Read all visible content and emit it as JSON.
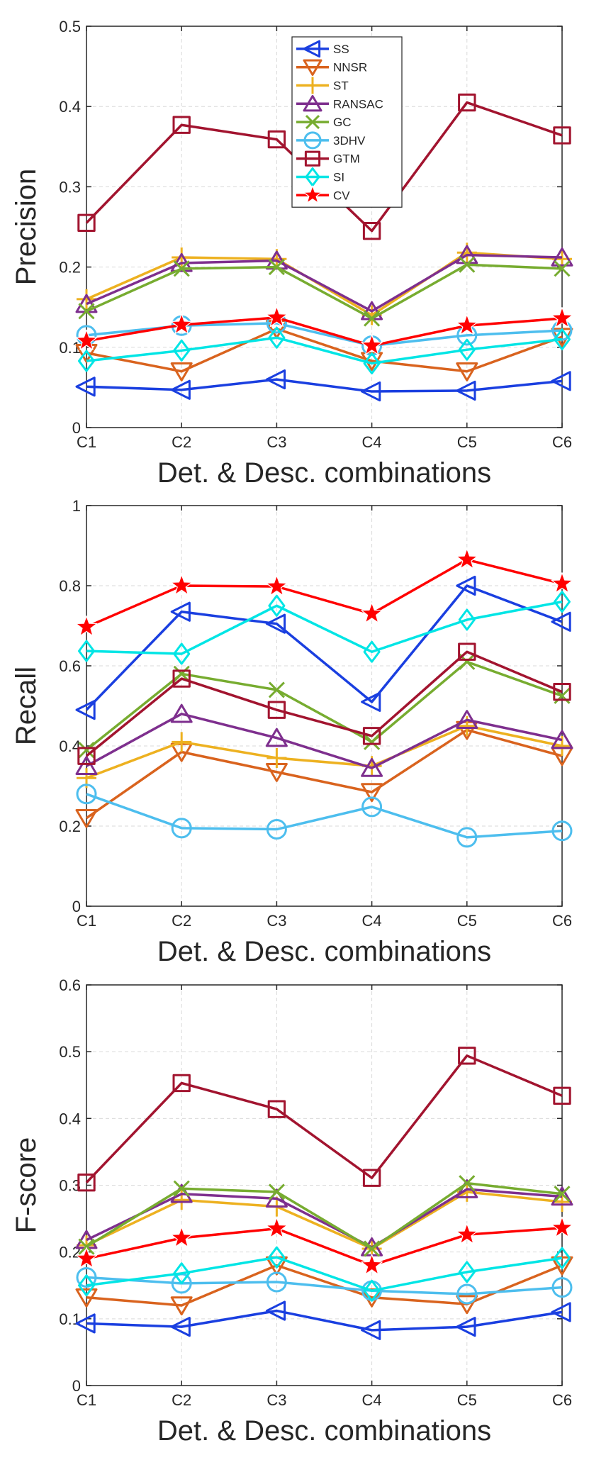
{
  "chart_data": [
    {
      "type": "line",
      "ylabel": "Precision",
      "xlabel": "Det. & Desc. combinations",
      "ylim": [
        0,
        0.5
      ],
      "yticks": [
        "0",
        "0.1",
        "0.2",
        "0.3",
        "0.4",
        "0.5"
      ],
      "categories": [
        "C1",
        "C2",
        "C3",
        "C4",
        "C5",
        "C6"
      ],
      "grid": true,
      "legend_position": "top-center",
      "series": [
        {
          "name": "SS",
          "values": [
            0.051,
            0.047,
            0.06,
            0.045,
            0.046,
            0.058
          ]
        },
        {
          "name": "NNSR",
          "values": [
            0.093,
            0.07,
            0.123,
            0.083,
            0.07,
            0.113
          ]
        },
        {
          "name": "ST",
          "values": [
            0.16,
            0.212,
            0.21,
            0.14,
            0.218,
            0.21
          ]
        },
        {
          "name": "RANSAC",
          "values": [
            0.154,
            0.205,
            0.208,
            0.145,
            0.215,
            0.212
          ]
        },
        {
          "name": "GC",
          "values": [
            0.145,
            0.198,
            0.2,
            0.136,
            0.203,
            0.198
          ]
        },
        {
          "name": "3DHV",
          "values": [
            0.115,
            0.127,
            0.13,
            0.102,
            0.115,
            0.121
          ]
        },
        {
          "name": "GTM",
          "values": [
            0.255,
            0.377,
            0.359,
            0.245,
            0.405,
            0.364
          ]
        },
        {
          "name": "SI",
          "values": [
            0.083,
            0.096,
            0.112,
            0.08,
            0.097,
            0.11
          ]
        },
        {
          "name": "CV",
          "values": [
            0.108,
            0.128,
            0.137,
            0.102,
            0.127,
            0.136
          ]
        }
      ]
    },
    {
      "type": "line",
      "ylabel": "Recall",
      "xlabel": "Det. & Desc. combinations",
      "ylim": [
        0,
        1
      ],
      "yticks": [
        "0",
        "0.2",
        "0.4",
        "0.6",
        "0.8",
        "1"
      ],
      "categories": [
        "C1",
        "C2",
        "C3",
        "C4",
        "C5",
        "C6"
      ],
      "grid": true,
      "series": [
        {
          "name": "SS",
          "values": [
            0.49,
            0.735,
            0.705,
            0.51,
            0.8,
            0.71
          ]
        },
        {
          "name": "NNSR",
          "values": [
            0.22,
            0.385,
            0.335,
            0.285,
            0.44,
            0.375
          ]
        },
        {
          "name": "ST",
          "values": [
            0.32,
            0.41,
            0.37,
            0.35,
            0.45,
            0.4
          ]
        },
        {
          "name": "RANSAC",
          "values": [
            0.35,
            0.48,
            0.42,
            0.345,
            0.465,
            0.415
          ]
        },
        {
          "name": "GC",
          "values": [
            0.39,
            0.58,
            0.54,
            0.41,
            0.61,
            0.525
          ]
        },
        {
          "name": "3DHV",
          "values": [
            0.28,
            0.195,
            0.192,
            0.248,
            0.172,
            0.188
          ]
        },
        {
          "name": "GTM",
          "values": [
            0.375,
            0.568,
            0.49,
            0.425,
            0.635,
            0.535
          ]
        },
        {
          "name": "SI",
          "values": [
            0.637,
            0.63,
            0.75,
            0.635,
            0.715,
            0.76
          ]
        },
        {
          "name": "CV",
          "values": [
            0.697,
            0.8,
            0.798,
            0.73,
            0.865,
            0.805
          ]
        }
      ]
    },
    {
      "type": "line",
      "ylabel": "F-score",
      "xlabel": "Det. & Desc. combinations",
      "ylim": [
        0,
        0.6
      ],
      "yticks": [
        "0",
        "0.1",
        "0.2",
        "0.3",
        "0.4",
        "0.5",
        "0.6"
      ],
      "categories": [
        "C1",
        "C2",
        "C3",
        "C4",
        "C5",
        "C6"
      ],
      "grid": true,
      "series": [
        {
          "name": "SS",
          "values": [
            0.093,
            0.088,
            0.112,
            0.083,
            0.088,
            0.11
          ]
        },
        {
          "name": "NNSR",
          "values": [
            0.132,
            0.12,
            0.18,
            0.132,
            0.122,
            0.18
          ]
        },
        {
          "name": "ST",
          "values": [
            0.21,
            0.278,
            0.268,
            0.205,
            0.29,
            0.275
          ]
        },
        {
          "name": "RANSAC",
          "values": [
            0.218,
            0.287,
            0.28,
            0.207,
            0.294,
            0.283
          ]
        },
        {
          "name": "GC",
          "values": [
            0.208,
            0.295,
            0.29,
            0.205,
            0.303,
            0.287
          ]
        },
        {
          "name": "3DHV",
          "values": [
            0.162,
            0.153,
            0.155,
            0.142,
            0.137,
            0.147
          ]
        },
        {
          "name": "GTM",
          "values": [
            0.304,
            0.453,
            0.414,
            0.311,
            0.494,
            0.434
          ]
        },
        {
          "name": "SI",
          "values": [
            0.15,
            0.168,
            0.192,
            0.142,
            0.17,
            0.191
          ]
        },
        {
          "name": "CV",
          "values": [
            0.19,
            0.221,
            0.235,
            0.18,
            0.226,
            0.236
          ]
        }
      ]
    }
  ],
  "styles": [
    {
      "name": "SS",
      "color": "#1a3fe0",
      "marker": "triangle-left"
    },
    {
      "name": "NNSR",
      "color": "#d9631e",
      "marker": "triangle-down"
    },
    {
      "name": "ST",
      "color": "#edb120",
      "marker": "plus"
    },
    {
      "name": "RANSAC",
      "color": "#7e2f8e",
      "marker": "triangle-up"
    },
    {
      "name": "GC",
      "color": "#77ac30",
      "marker": "cross"
    },
    {
      "name": "3DHV",
      "color": "#4dbeee",
      "marker": "circle"
    },
    {
      "name": "GTM",
      "color": "#a2142f",
      "marker": "square"
    },
    {
      "name": "SI",
      "color": "#00e5e5",
      "marker": "diamond"
    },
    {
      "name": "CV",
      "color": "#ff0000",
      "marker": "pentagram"
    }
  ]
}
